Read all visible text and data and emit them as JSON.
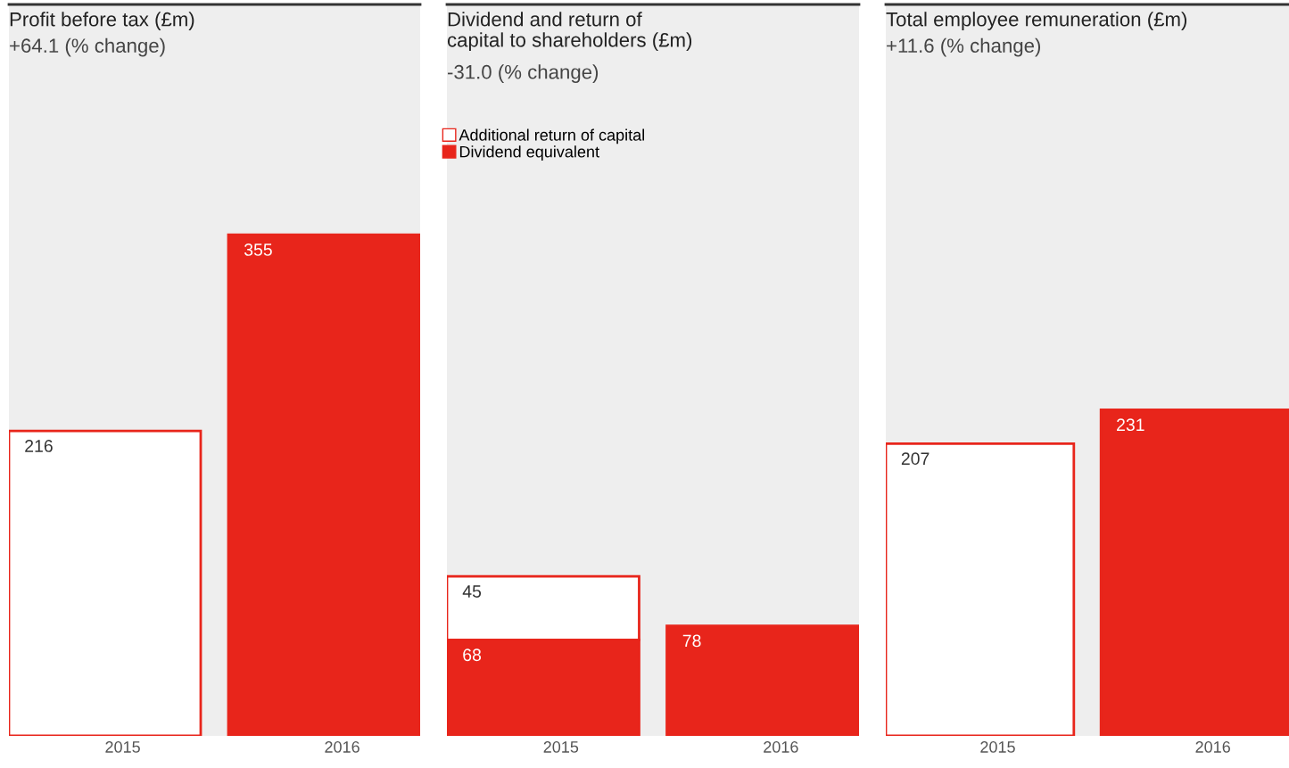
{
  "chart_data": [
    {
      "type": "bar",
      "title": "Profit before tax (£m)",
      "subtitle": "+64.1 (% change)",
      "categories": [
        "2015",
        "2016"
      ],
      "values": [
        216,
        355
      ],
      "colors": [
        "#ffffff",
        "#e8251b"
      ],
      "ylim": [
        0,
        518
      ],
      "data_labels": true,
      "grid": false,
      "legend": false
    },
    {
      "type": "bar",
      "title": "Dividend and return of\ncapital to shareholders (£m)",
      "subtitle": "-31.0 (% change)",
      "categories": [
        "2015",
        "2016"
      ],
      "stacked": true,
      "series": [
        {
          "name": "Dividend equivalent",
          "color": "#e8251b",
          "values": [
            68,
            78
          ]
        },
        {
          "name": "Additional return of capital",
          "color": "#ffffff",
          "values": [
            45,
            null
          ]
        }
      ],
      "ylim": [
        0,
        518
      ],
      "data_labels": true,
      "grid": false,
      "legend": "top left"
    },
    {
      "type": "bar",
      "title": "Total employee remuneration (£m)",
      "subtitle": "+11.6 (% change)",
      "categories": [
        "2015",
        "2016"
      ],
      "values": [
        207,
        231
      ],
      "colors": [
        "#ffffff",
        "#e8251b"
      ],
      "ylim": [
        0,
        518
      ],
      "data_labels": true,
      "grid": false,
      "legend": false
    }
  ]
}
